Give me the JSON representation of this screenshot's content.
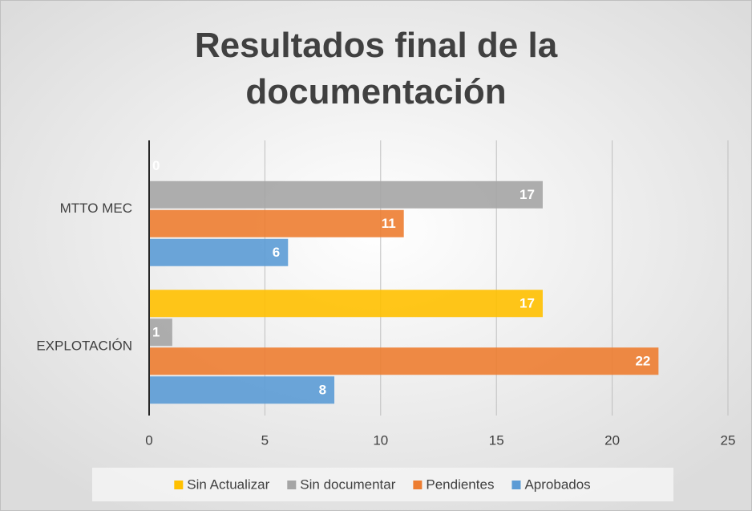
{
  "chart_data": {
    "type": "bar",
    "orientation": "horizontal",
    "title": "Resultados final de la documentación",
    "categories": [
      "EXPLOTACIÓN",
      "MTTO MEC"
    ],
    "series": [
      {
        "name": "Sin Actualizar",
        "color": "#ffc000",
        "values": [
          17,
          0
        ]
      },
      {
        "name": "Sin documentar",
        "color": "#a5a5a5",
        "values": [
          1,
          17
        ]
      },
      {
        "name": "Pendientes",
        "color": "#ed7d31",
        "values": [
          22,
          11
        ]
      },
      {
        "name": "Aprobados",
        "color": "#5b9bd5",
        "values": [
          8,
          6
        ]
      }
    ],
    "xlim": [
      0,
      25
    ],
    "xticks": [
      0,
      5,
      10,
      15,
      20,
      25
    ],
    "grid": true,
    "legend": "bottom"
  }
}
